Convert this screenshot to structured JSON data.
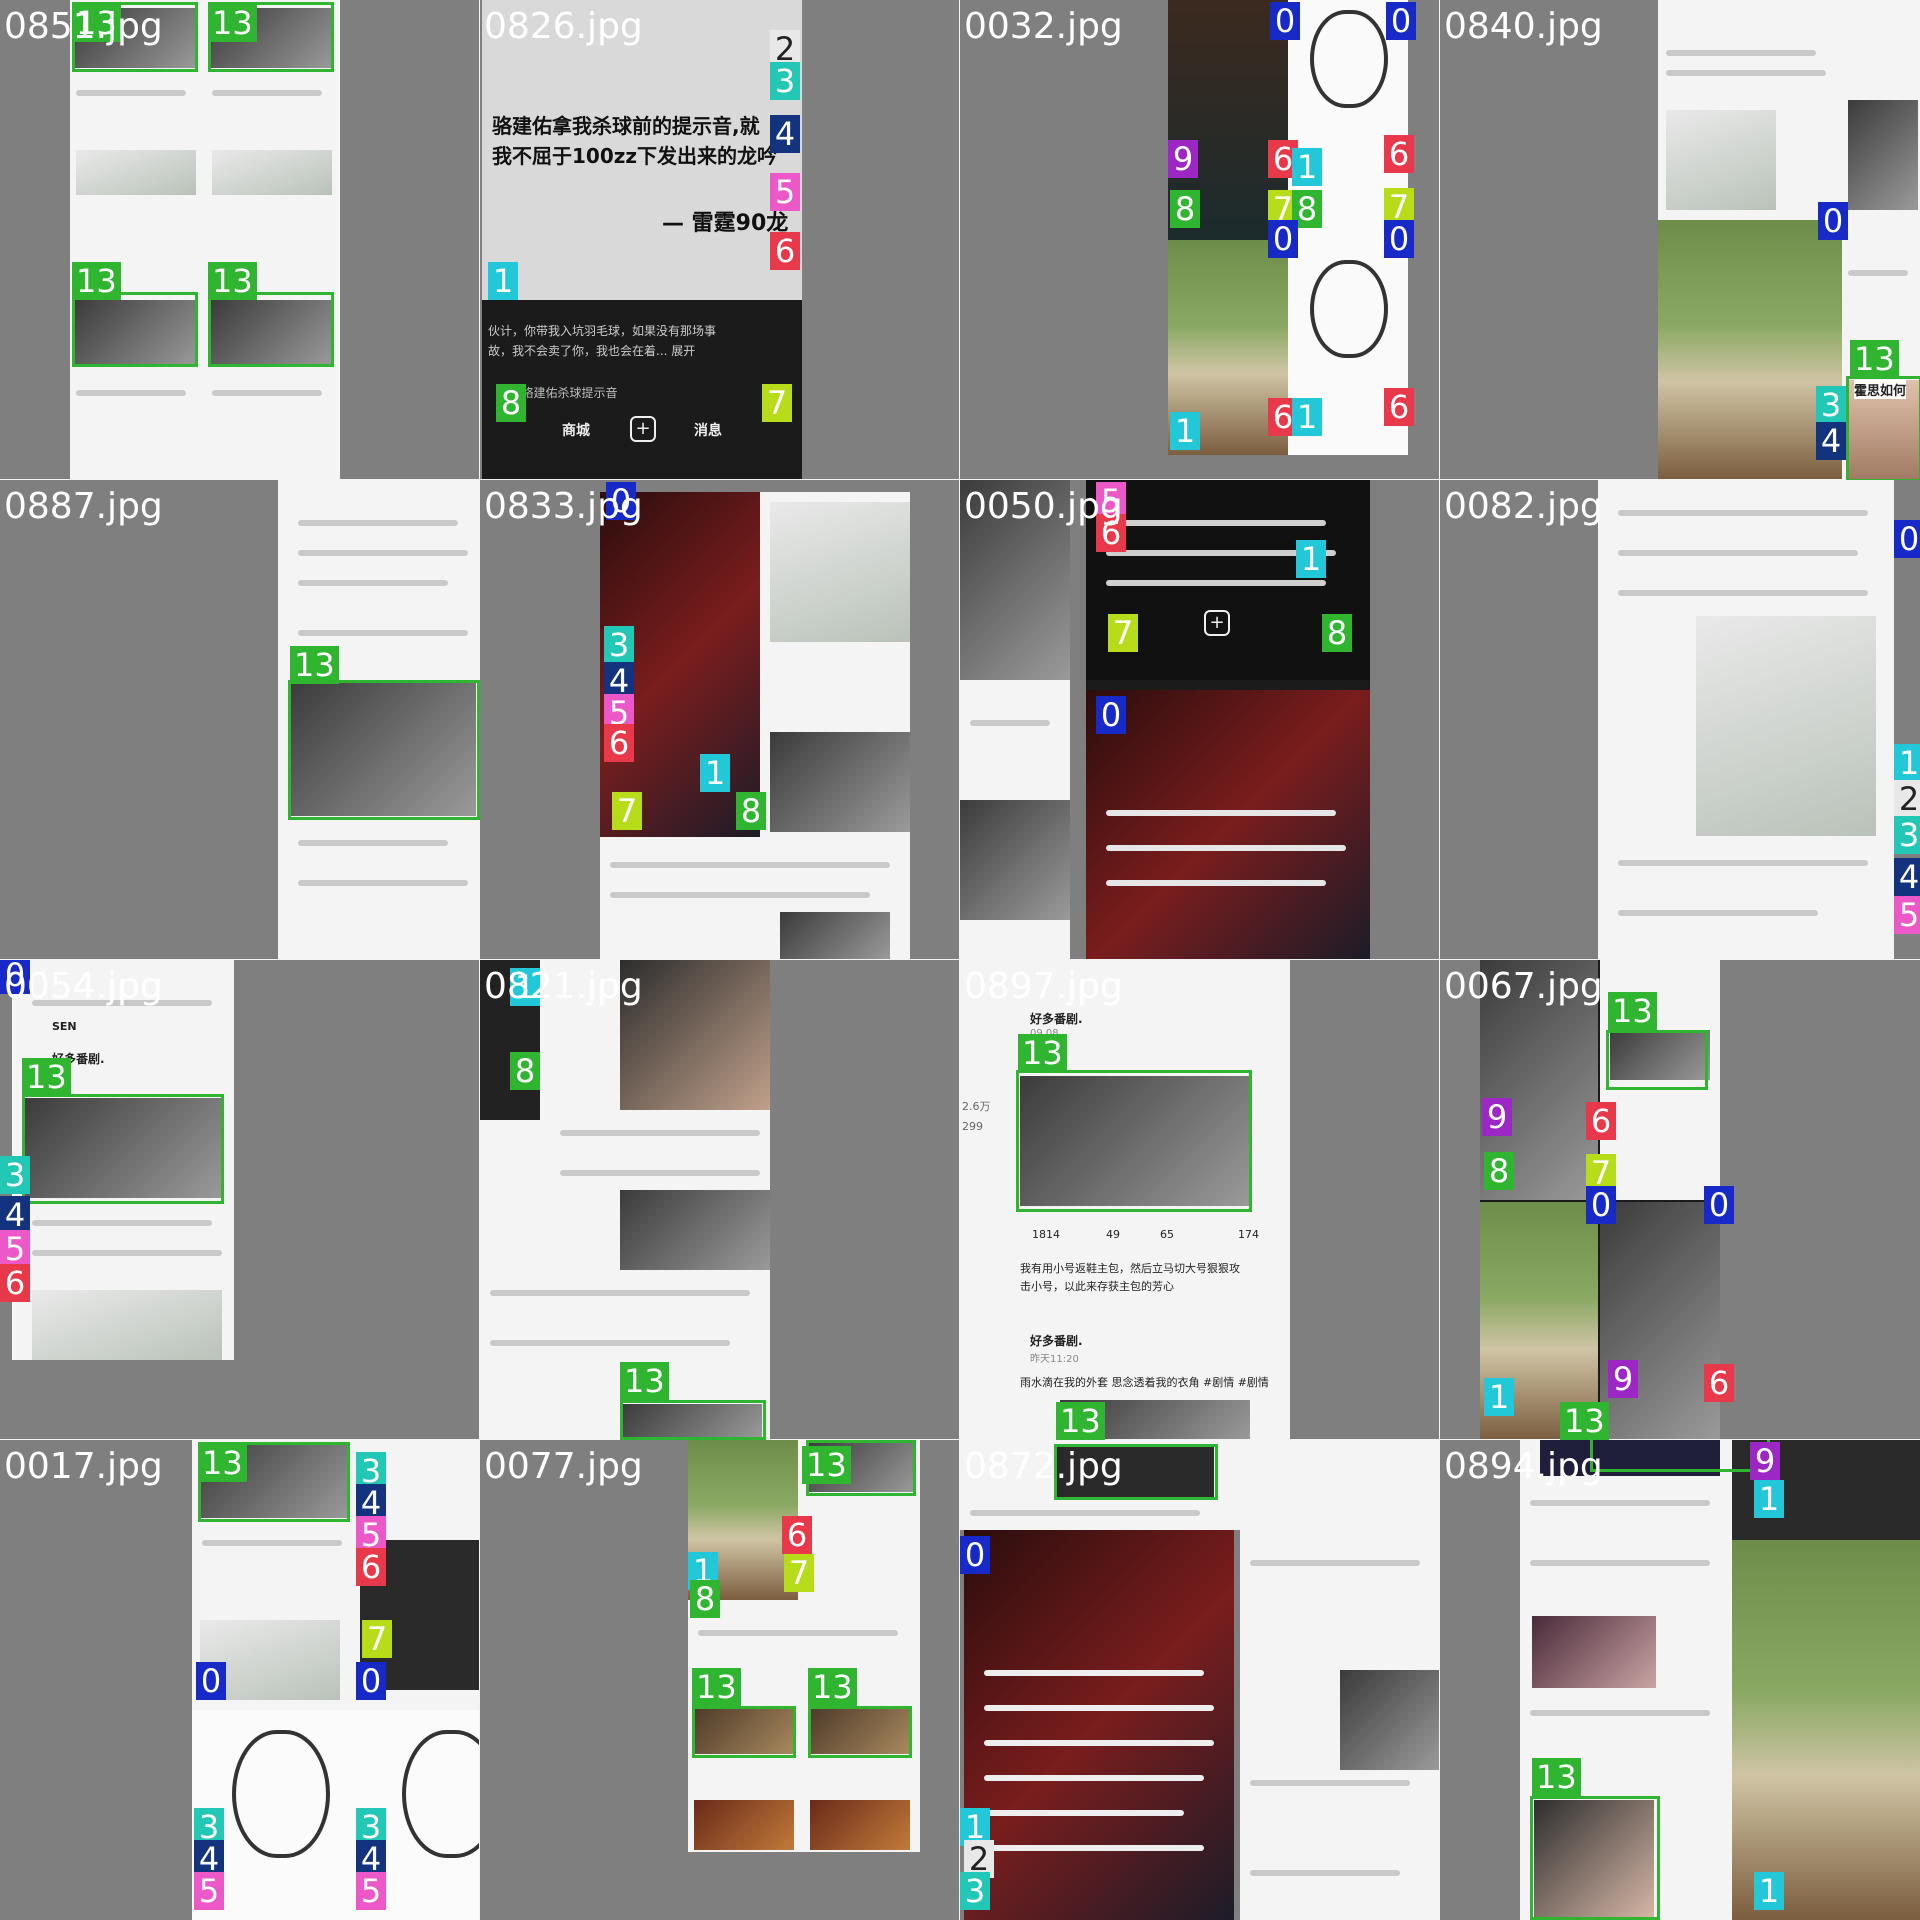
{
  "grid": {
    "cells": [
      {
        "label": "0851.jpg",
        "theme": "light",
        "badges": [
          {
            "n": "13",
            "c": "#2fb52f"
          },
          {
            "n": "13",
            "c": "#2fb52f"
          },
          {
            "n": "13",
            "c": "#2fb52f"
          },
          {
            "n": "13",
            "c": "#2fb52f"
          }
        ]
      },
      {
        "label": "0826.jpg",
        "theme": "dark",
        "text_lines": [
          "骆建佑拿我杀球前的提示音,就",
          "我不屈于100zz下发出来的龙吟",
          "— 雷霆90龙",
          "伙计，你带我入坑羽毛球，如果没有那场事",
          "故，我不会卖了你，我也会在着... 展开",
          "家 · 骆建佑杀球提示音",
          "商城",
          "消息"
        ],
        "badges": [
          {
            "n": "2",
            "c": "#e8e8e8"
          },
          {
            "n": "3",
            "c": "#23c7b5"
          },
          {
            "n": "4",
            "c": "#14337f"
          },
          {
            "n": "5",
            "c": "#ec58c8"
          },
          {
            "n": "6",
            "c": "#e8394a"
          },
          {
            "n": "1",
            "c": "#22c7d8"
          },
          {
            "n": "8",
            "c": "#2fb52f"
          },
          {
            "n": "7",
            "c": "#b7dc1a"
          }
        ]
      },
      {
        "label": "0032.jpg",
        "theme": "dark",
        "badges": [
          {
            "n": "0",
            "c": "#1729c7"
          },
          {
            "n": "0",
            "c": "#1729c7"
          },
          {
            "n": "9",
            "c": "#9c27c4"
          },
          {
            "n": "6",
            "c": "#e8394a"
          },
          {
            "n": "1",
            "c": "#22c7d8"
          },
          {
            "n": "6",
            "c": "#e8394a"
          },
          {
            "n": "8",
            "c": "#2fb52f"
          },
          {
            "n": "7",
            "c": "#b7dc1a"
          },
          {
            "n": "8",
            "c": "#2fb52f"
          },
          {
            "n": "0",
            "c": "#1729c7"
          },
          {
            "n": "7",
            "c": "#b7dc1a"
          },
          {
            "n": "0",
            "c": "#1729c7"
          },
          {
            "n": "6",
            "c": "#e8394a"
          },
          {
            "n": "1",
            "c": "#22c7d8"
          },
          {
            "n": "6",
            "c": "#e8394a"
          },
          {
            "n": "1",
            "c": "#22c7d8"
          }
        ]
      },
      {
        "label": "0840.jpg",
        "theme": "light",
        "text_lines": [
          "霍思如何"
        ],
        "badges": [
          {
            "n": "0",
            "c": "#1729c7"
          },
          {
            "n": "13",
            "c": "#2fb52f"
          },
          {
            "n": "3",
            "c": "#23c7b5"
          },
          {
            "n": "4",
            "c": "#14337f"
          }
        ]
      },
      {
        "label": "0887.jpg",
        "theme": "light",
        "badges": [
          {
            "n": "13",
            "c": "#2fb52f"
          }
        ]
      },
      {
        "label": "0833.jpg",
        "theme": "dark",
        "badges": [
          {
            "n": "0",
            "c": "#1729c7"
          },
          {
            "n": "3",
            "c": "#23c7b5"
          },
          {
            "n": "4",
            "c": "#14337f"
          },
          {
            "n": "5",
            "c": "#ec58c8"
          },
          {
            "n": "6",
            "c": "#e8394a"
          },
          {
            "n": "1",
            "c": "#22c7d8"
          },
          {
            "n": "7",
            "c": "#b7dc1a"
          },
          {
            "n": "8",
            "c": "#2fb52f"
          }
        ]
      },
      {
        "label": "0050.jpg",
        "theme": "dark",
        "badges": [
          {
            "n": "5",
            "c": "#ec58c8"
          },
          {
            "n": "6",
            "c": "#e8394a"
          },
          {
            "n": "1",
            "c": "#22c7d8"
          },
          {
            "n": "7",
            "c": "#b7dc1a"
          },
          {
            "n": "8",
            "c": "#2fb52f"
          },
          {
            "n": "0",
            "c": "#1729c7"
          }
        ]
      },
      {
        "label": "0082.jpg",
        "theme": "light",
        "badges": [
          {
            "n": "0",
            "c": "#1729c7"
          },
          {
            "n": "1",
            "c": "#22c7d8"
          },
          {
            "n": "2",
            "c": "#e8e8e8"
          },
          {
            "n": "3",
            "c": "#23c7b5"
          },
          {
            "n": "4",
            "c": "#14337f"
          },
          {
            "n": "5",
            "c": "#ec58c8"
          }
        ]
      },
      {
        "label": "0054.jpg",
        "theme": "light",
        "text_lines": [
          "好多番剧.",
          "SEN"
        ],
        "badges": [
          {
            "n": "0",
            "c": "#1729c7"
          },
          {
            "n": "13",
            "c": "#2fb52f"
          },
          {
            "n": "3",
            "c": "#23c7b5"
          },
          {
            "n": "4",
            "c": "#14337f"
          },
          {
            "n": "5",
            "c": "#ec58c8"
          },
          {
            "n": "6",
            "c": "#e8394a"
          }
        ]
      },
      {
        "label": "0821.jpg",
        "theme": "light",
        "badges": [
          {
            "n": "1",
            "c": "#22c7d8"
          },
          {
            "n": "8",
            "c": "#2fb52f"
          },
          {
            "n": "13",
            "c": "#2fb52f"
          }
        ]
      },
      {
        "label": "0897.jpg",
        "theme": "light",
        "text_lines": [
          "好多番剧.",
          "09.08",
          "1814",
          "49",
          "65",
          "174",
          "2.6万",
          "299",
          "我有用小号返鞋主包，然后立马切大号狠狠攻",
          "击小号，以此来存获主包的芳心",
          "好多番剧.",
          "昨天11:20",
          "雨水滴在我的外套 思念透着我的衣角 #剧情 #剧情"
        ],
        "badges": [
          {
            "n": "13",
            "c": "#2fb52f"
          },
          {
            "n": "13",
            "c": "#2fb52f"
          }
        ]
      },
      {
        "label": "0067.jpg",
        "theme": "dark",
        "badges": [
          {
            "n": "13",
            "c": "#2fb52f"
          },
          {
            "n": "9",
            "c": "#9c27c4"
          },
          {
            "n": "6",
            "c": "#e8394a"
          },
          {
            "n": "8",
            "c": "#2fb52f"
          },
          {
            "n": "7",
            "c": "#b7dc1a"
          },
          {
            "n": "0",
            "c": "#1729c7"
          },
          {
            "n": "0",
            "c": "#1729c7"
          },
          {
            "n": "9",
            "c": "#9c27c4"
          },
          {
            "n": "6",
            "c": "#e8394a"
          },
          {
            "n": "1",
            "c": "#22c7d8"
          },
          {
            "n": "13",
            "c": "#2fb52f"
          }
        ]
      },
      {
        "label": "0017.jpg",
        "theme": "light",
        "badges": [
          {
            "n": "13",
            "c": "#2fb52f"
          },
          {
            "n": "3",
            "c": "#23c7b5"
          },
          {
            "n": "4",
            "c": "#14337f"
          },
          {
            "n": "5",
            "c": "#ec58c8"
          },
          {
            "n": "6",
            "c": "#e8394a"
          },
          {
            "n": "7",
            "c": "#b7dc1a"
          },
          {
            "n": "0",
            "c": "#1729c7"
          },
          {
            "n": "0",
            "c": "#1729c7"
          },
          {
            "n": "3",
            "c": "#23c7b5"
          },
          {
            "n": "4",
            "c": "#14337f"
          },
          {
            "n": "5",
            "c": "#ec58c8"
          },
          {
            "n": "3",
            "c": "#23c7b5"
          },
          {
            "n": "4",
            "c": "#14337f"
          },
          {
            "n": "5",
            "c": "#ec58c8"
          }
        ]
      },
      {
        "label": "0077.jpg",
        "theme": "light",
        "badges": [
          {
            "n": "13",
            "c": "#2fb52f"
          },
          {
            "n": "1",
            "c": "#22c7d8"
          },
          {
            "n": "8",
            "c": "#2fb52f"
          },
          {
            "n": "6",
            "c": "#e8394a"
          },
          {
            "n": "7",
            "c": "#b7dc1a"
          },
          {
            "n": "13",
            "c": "#2fb52f"
          },
          {
            "n": "13",
            "c": "#2fb52f"
          }
        ]
      },
      {
        "label": "0872.jpg",
        "theme": "dark",
        "badges": [
          {
            "n": "0",
            "c": "#1729c7"
          },
          {
            "n": "1",
            "c": "#22c7d8"
          },
          {
            "n": "2",
            "c": "#e8e8e8"
          },
          {
            "n": "3",
            "c": "#23c7b5"
          }
        ]
      },
      {
        "label": "0894.jpg",
        "theme": "light",
        "badges": [
          {
            "n": "9",
            "c": "#9c27c4"
          },
          {
            "n": "1",
            "c": "#22c7d8"
          },
          {
            "n": "13",
            "c": "#2fb52f"
          },
          {
            "n": "1",
            "c": "#22c7d8"
          }
        ]
      }
    ]
  }
}
